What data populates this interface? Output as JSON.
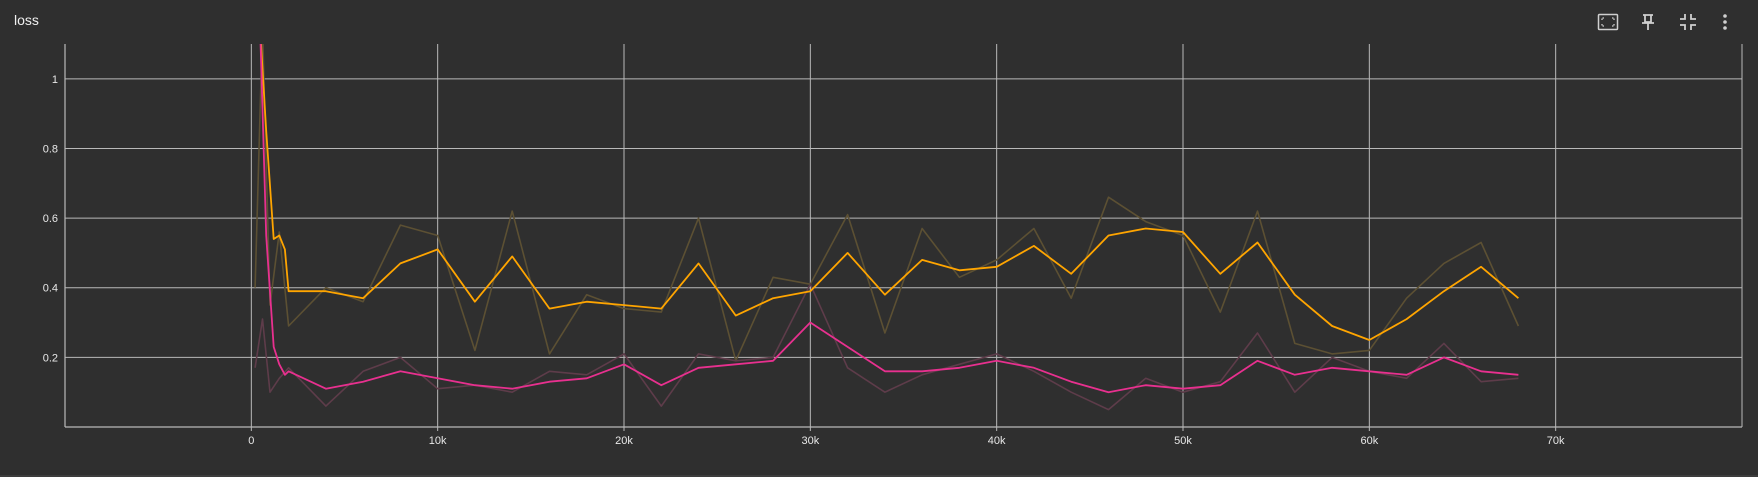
{
  "panel": {
    "title": "loss"
  },
  "toolbar": {
    "icons": [
      "fit-domain-icon",
      "pin-icon",
      "minimize-icon",
      "more-vert-icon"
    ]
  },
  "colors": {
    "background": "#2f2f2f",
    "grid": "#b9b9b9",
    "tick_text": "#e8e8e8",
    "series_orange": "#ffa500",
    "series_orange_raw": "#5c5033",
    "series_pink": "#e8308f",
    "series_pink_raw": "#5e3c4a"
  },
  "chart_data": {
    "type": "line",
    "title": "loss",
    "xlim": [
      -10000,
      80000
    ],
    "ylim": [
      0,
      1.1
    ],
    "grid": true,
    "x_ticks": [
      0,
      10000,
      20000,
      30000,
      40000,
      50000,
      60000,
      70000
    ],
    "x_tick_labels": [
      "0",
      "10k",
      "20k",
      "30k",
      "40k",
      "50k",
      "60k",
      "70k"
    ],
    "y_ticks": [
      0.2,
      0.4,
      0.6,
      0.8,
      1
    ],
    "y_tick_labels": [
      "0.2",
      "0.4",
      "0.6",
      "0.8",
      "1"
    ],
    "series": [
      {
        "color": "#5c5033",
        "smoothed": false,
        "x": [
          200,
          600,
          1000,
          1500,
          2000,
          4000,
          6000,
          8000,
          10000,
          12000,
          14000,
          16000,
          18000,
          20000,
          22000,
          24000,
          26000,
          28000,
          30000,
          32000,
          34000,
          36000,
          38000,
          40000,
          42000,
          44000,
          46000,
          48000,
          50000,
          52000,
          54000,
          56000,
          58000,
          60000,
          62000,
          64000,
          66000,
          68000
        ],
        "y": [
          0.4,
          1.15,
          0.35,
          0.56,
          0.29,
          0.4,
          0.36,
          0.58,
          0.55,
          0.22,
          0.62,
          0.21,
          0.38,
          0.34,
          0.33,
          0.6,
          0.19,
          0.43,
          0.41,
          0.61,
          0.27,
          0.57,
          0.43,
          0.48,
          0.57,
          0.37,
          0.66,
          0.59,
          0.55,
          0.33,
          0.62,
          0.24,
          0.21,
          0.22,
          0.37,
          0.47,
          0.53,
          0.29
        ]
      },
      {
        "color": "#5e3c4a",
        "smoothed": false,
        "x": [
          200,
          600,
          1000,
          1500,
          2000,
          4000,
          6000,
          8000,
          10000,
          12000,
          14000,
          16000,
          18000,
          20000,
          22000,
          24000,
          26000,
          28000,
          30000,
          32000,
          34000,
          36000,
          38000,
          40000,
          42000,
          44000,
          46000,
          48000,
          50000,
          52000,
          54000,
          56000,
          58000,
          60000,
          62000,
          64000,
          66000,
          68000
        ],
        "y": [
          0.17,
          0.31,
          0.1,
          0.14,
          0.17,
          0.06,
          0.16,
          0.2,
          0.11,
          0.12,
          0.1,
          0.16,
          0.15,
          0.21,
          0.06,
          0.21,
          0.19,
          0.2,
          0.41,
          0.17,
          0.1,
          0.15,
          0.18,
          0.21,
          0.16,
          0.1,
          0.05,
          0.14,
          0.1,
          0.13,
          0.27,
          0.1,
          0.2,
          0.16,
          0.14,
          0.24,
          0.13,
          0.14
        ]
      },
      {
        "color": "#ffa500",
        "smoothed": true,
        "x": [
          500,
          800,
          1200,
          1500,
          1800,
          2000,
          4000,
          6000,
          8000,
          10000,
          12000,
          14000,
          16000,
          18000,
          20000,
          22000,
          24000,
          26000,
          28000,
          30000,
          32000,
          34000,
          36000,
          38000,
          40000,
          42000,
          44000,
          46000,
          48000,
          50000,
          52000,
          54000,
          56000,
          58000,
          60000,
          62000,
          64000,
          66000,
          68000
        ],
        "y": [
          1.12,
          0.85,
          0.54,
          0.55,
          0.51,
          0.39,
          0.39,
          0.37,
          0.47,
          0.51,
          0.36,
          0.49,
          0.34,
          0.36,
          0.35,
          0.34,
          0.47,
          0.32,
          0.37,
          0.39,
          0.5,
          0.38,
          0.48,
          0.45,
          0.46,
          0.52,
          0.44,
          0.55,
          0.57,
          0.56,
          0.44,
          0.53,
          0.38,
          0.29,
          0.25,
          0.31,
          0.39,
          0.46,
          0.37
        ]
      },
      {
        "color": "#e8308f",
        "smoothed": true,
        "x": [
          500,
          800,
          1200,
          1500,
          1800,
          2000,
          4000,
          6000,
          8000,
          10000,
          12000,
          14000,
          16000,
          18000,
          20000,
          22000,
          24000,
          26000,
          28000,
          30000,
          32000,
          34000,
          36000,
          38000,
          40000,
          42000,
          44000,
          46000,
          48000,
          50000,
          52000,
          54000,
          56000,
          58000,
          60000,
          62000,
          64000,
          66000,
          68000
        ],
        "y": [
          1.1,
          0.55,
          0.23,
          0.18,
          0.15,
          0.16,
          0.11,
          0.13,
          0.16,
          0.14,
          0.12,
          0.11,
          0.13,
          0.14,
          0.18,
          0.12,
          0.17,
          0.18,
          0.19,
          0.3,
          0.23,
          0.16,
          0.16,
          0.17,
          0.19,
          0.17,
          0.13,
          0.1,
          0.12,
          0.11,
          0.12,
          0.19,
          0.15,
          0.17,
          0.16,
          0.15,
          0.2,
          0.16,
          0.15
        ]
      }
    ]
  }
}
